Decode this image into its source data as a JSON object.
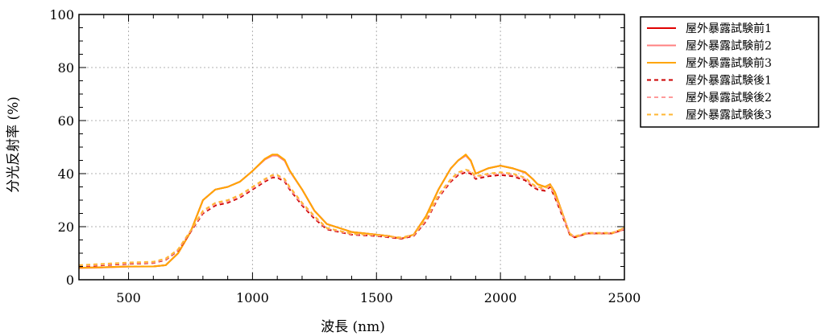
{
  "chart_data": {
    "type": "line",
    "title": "",
    "xlabel": "波長 (nm)",
    "ylabel": "分光反射率 (%)",
    "xlim": [
      300,
      2500
    ],
    "ylim": [
      0,
      100
    ],
    "xticks": [
      500,
      1000,
      1500,
      2000,
      2500
    ],
    "yticks": [
      0,
      20,
      40,
      60,
      80,
      100
    ],
    "grid": true,
    "legend_position": "outside-top-right",
    "series": [
      {
        "name": "屋外暴露試験前1",
        "color": "#e00000",
        "dash": "solid",
        "x": [
          300,
          400,
          500,
          600,
          650,
          700,
          750,
          800,
          850,
          900,
          950,
          1000,
          1050,
          1080,
          1100,
          1130,
          1150,
          1200,
          1250,
          1300,
          1400,
          1500,
          1550,
          1600,
          1650,
          1700,
          1750,
          1800,
          1830,
          1860,
          1880,
          1900,
          1950,
          2000,
          2050,
          2100,
          2130,
          2150,
          2180,
          2200,
          2220,
          2250,
          2280,
          2300,
          2350,
          2400,
          2450,
          2500
        ],
        "y": [
          4.5,
          4.7,
          5.0,
          5.0,
          5.5,
          10,
          18,
          30,
          34,
          35,
          37,
          41,
          45.5,
          47,
          47,
          45,
          41,
          34,
          26,
          21,
          18,
          17,
          16.5,
          15.5,
          17,
          24,
          34,
          42,
          45,
          47,
          45,
          40,
          42,
          43,
          42,
          40.5,
          38,
          36,
          35,
          36,
          33,
          25,
          17,
          16,
          17.5,
          17.5,
          17.5,
          19
        ]
      },
      {
        "name": "屋外暴露試験前2",
        "color": "#ff8080",
        "dash": "solid",
        "x": [
          300,
          400,
          500,
          600,
          650,
          700,
          750,
          800,
          850,
          900,
          950,
          1000,
          1050,
          1080,
          1100,
          1130,
          1150,
          1200,
          1250,
          1300,
          1400,
          1500,
          1550,
          1600,
          1650,
          1700,
          1750,
          1800,
          1830,
          1860,
          1880,
          1900,
          1950,
          2000,
          2050,
          2100,
          2130,
          2150,
          2180,
          2200,
          2220,
          2250,
          2280,
          2300,
          2350,
          2400,
          2450,
          2500
        ],
        "y": [
          4.4,
          4.6,
          4.9,
          5.0,
          5.5,
          10,
          18,
          30,
          34,
          35,
          37,
          41,
          45.3,
          46.8,
          46.8,
          44.8,
          41,
          34,
          26,
          21,
          18,
          17,
          16.5,
          15.5,
          17,
          24,
          34,
          42,
          45,
          46.8,
          44.8,
          40,
          42,
          43,
          42,
          40.3,
          38,
          36,
          35,
          36,
          33,
          25,
          17,
          16,
          17.5,
          17.5,
          17.5,
          19
        ]
      },
      {
        "name": "屋外暴露試験前3",
        "color": "#ffa500",
        "dash": "solid",
        "x": [
          300,
          400,
          500,
          600,
          650,
          700,
          750,
          800,
          850,
          900,
          950,
          1000,
          1050,
          1080,
          1100,
          1130,
          1150,
          1200,
          1250,
          1300,
          1400,
          1500,
          1550,
          1600,
          1650,
          1700,
          1750,
          1800,
          1830,
          1860,
          1880,
          1900,
          1950,
          2000,
          2050,
          2100,
          2130,
          2150,
          2180,
          2200,
          2220,
          2250,
          2280,
          2300,
          2350,
          2400,
          2450,
          2500
        ],
        "y": [
          4.5,
          4.7,
          5.0,
          5.0,
          5.5,
          10,
          18,
          30,
          34,
          35,
          37,
          41,
          45.6,
          47.2,
          47.2,
          45.2,
          41.2,
          34,
          26,
          21,
          18,
          17,
          16.5,
          15.5,
          17,
          24,
          34,
          42,
          45,
          47.2,
          45,
          40,
          42,
          43,
          42,
          40.5,
          38,
          36,
          35,
          36,
          33,
          25,
          17,
          16,
          17.5,
          17.5,
          17.5,
          19.5
        ]
      },
      {
        "name": "屋外暴露試験後1",
        "color": "#cc0000",
        "dash": "dashed",
        "x": [
          300,
          400,
          500,
          600,
          650,
          700,
          750,
          800,
          850,
          900,
          950,
          1000,
          1050,
          1080,
          1100,
          1130,
          1150,
          1200,
          1250,
          1300,
          1400,
          1500,
          1550,
          1600,
          1650,
          1700,
          1750,
          1800,
          1830,
          1860,
          1880,
          1900,
          1950,
          2000,
          2050,
          2100,
          2130,
          2150,
          2180,
          2200,
          2220,
          2250,
          2280,
          2300,
          2350,
          2400,
          2450,
          2500
        ],
        "y": [
          5.0,
          5.5,
          6.0,
          6.3,
          7.5,
          11,
          18,
          25,
          28,
          29,
          31,
          34,
          37,
          38.5,
          38.5,
          37,
          34,
          28,
          23,
          19,
          17,
          16.5,
          16,
          15.5,
          16.5,
          22,
          31,
          37,
          39.5,
          40.5,
          40,
          38,
          39,
          39.5,
          39,
          37.5,
          35,
          34,
          33.5,
          35,
          31,
          24,
          17,
          16,
          17.5,
          17.5,
          17.5,
          19
        ]
      },
      {
        "name": "屋外暴露試験後2",
        "color": "#ff9a9a",
        "dash": "dashed",
        "x": [
          300,
          400,
          500,
          600,
          650,
          700,
          750,
          800,
          850,
          900,
          950,
          1000,
          1050,
          1080,
          1100,
          1130,
          1150,
          1200,
          1250,
          1300,
          1400,
          1500,
          1550,
          1600,
          1650,
          1700,
          1750,
          1800,
          1830,
          1860,
          1880,
          1900,
          1950,
          2000,
          2050,
          2100,
          2130,
          2150,
          2180,
          2200,
          2220,
          2250,
          2280,
          2300,
          2350,
          2400,
          2450,
          2500
        ],
        "y": [
          5.2,
          5.7,
          6.2,
          6.5,
          7.7,
          11.2,
          18.3,
          25.5,
          28.5,
          29.5,
          31.5,
          34.5,
          37.5,
          39,
          39,
          37.5,
          34.5,
          28.5,
          23.5,
          19.3,
          17.2,
          16.7,
          16.2,
          15.7,
          16.8,
          22.5,
          31.5,
          37.5,
          40,
          41,
          40.5,
          38.5,
          39.5,
          40,
          39.5,
          38,
          35.5,
          34.5,
          34,
          35.5,
          31.5,
          24.5,
          17.2,
          16.2,
          17.6,
          17.6,
          17.6,
          19.2
        ]
      },
      {
        "name": "屋外暴露試験後3",
        "color": "#ffb733",
        "dash": "dashed",
        "x": [
          300,
          400,
          500,
          600,
          650,
          700,
          750,
          800,
          850,
          900,
          950,
          1000,
          1050,
          1080,
          1100,
          1130,
          1150,
          1200,
          1250,
          1300,
          1400,
          1500,
          1550,
          1600,
          1650,
          1700,
          1750,
          1800,
          1830,
          1860,
          1880,
          1900,
          1950,
          2000,
          2050,
          2100,
          2130,
          2150,
          2180,
          2200,
          2220,
          2250,
          2280,
          2300,
          2350,
          2400,
          2450,
          2500
        ],
        "y": [
          5.5,
          6.0,
          6.5,
          6.8,
          8.0,
          11.5,
          18.5,
          26,
          29,
          30,
          32,
          35,
          38,
          39.5,
          39.5,
          38,
          35,
          29,
          24,
          19.5,
          17.4,
          16.9,
          16.4,
          15.9,
          17,
          23,
          32,
          38,
          40.5,
          41.5,
          41,
          39,
          40,
          40.5,
          40,
          38.5,
          36,
          35,
          34.5,
          36,
          32,
          25,
          17.4,
          16.4,
          17.7,
          17.7,
          17.7,
          19.4
        ]
      }
    ]
  }
}
